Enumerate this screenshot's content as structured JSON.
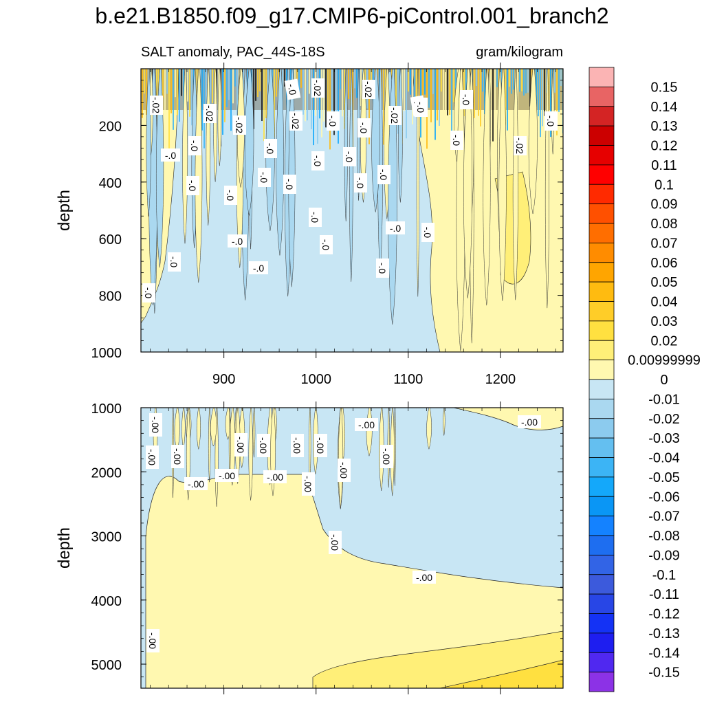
{
  "chart_data": {
    "type": "contour",
    "title": "b.e21.B1850.f09_g17.CMIP6-piControl.001_branch2",
    "subtitle_left": "SALT anomaly, PAC_44S-18S",
    "subtitle_right": "gram/kilogram",
    "xlabel": "",
    "xlim": [
      810,
      1268
    ],
    "x_ticks": [
      900,
      1000,
      1100,
      1200
    ],
    "x_tick_labels": [
      "900",
      "1000",
      "1100",
      "1200"
    ],
    "panels": [
      {
        "name": "upper",
        "ylabel": "depth",
        "ylim": [
          1000,
          0
        ],
        "y_ticks": [
          200,
          400,
          600,
          800,
          1000
        ],
        "y_tick_labels": [
          "200",
          "400",
          "600",
          "800",
          "1000"
        ],
        "contour_labels": [
          "-.02",
          "-.02",
          "-.02",
          "-.02",
          "-.02",
          "-.02",
          "-.02",
          "-.02",
          "-.02",
          "-.0",
          "-.0",
          "-.0",
          "-.0",
          "-.0",
          "-.0",
          "-.0",
          "-.0",
          "-.0",
          "-.0",
          "-.0",
          "-.0",
          "-.0",
          "-.0",
          "-.0",
          "-.0",
          "-.0",
          "-.0",
          "-.0",
          "-.0",
          "-.0",
          "-.0",
          "-.0",
          "-.0",
          "-.0",
          "-.0",
          "-.0"
        ]
      },
      {
        "name": "lower",
        "ylabel": "depth",
        "ylim": [
          5375,
          1000
        ],
        "y_ticks": [
          1000,
          2000,
          3000,
          4000,
          5000
        ],
        "y_tick_labels": [
          "1000",
          "2000",
          "3000",
          "4000",
          "5000"
        ],
        "contour_labels": [
          "-.00",
          "-.00",
          "-.00",
          "-.00",
          "-.00",
          "-.00",
          "-.00",
          "-.00",
          "-.00",
          "-.00",
          "-.00",
          "-.00",
          "-.00",
          "-.00",
          "-.00",
          "-.00",
          "-.00",
          "-.00"
        ]
      }
    ],
    "colorbar": {
      "labels": [
        "0.15",
        "0.14",
        "0.13",
        "0.12",
        "0.11",
        "0.1",
        "0.09",
        "0.08",
        "0.07",
        "0.06",
        "0.05",
        "0.04",
        "0.03",
        "0.02",
        "0.00999999",
        "0",
        "-0.01",
        "-0.02",
        "-0.03",
        "-0.04",
        "-0.05",
        "-0.06",
        "-0.07",
        "-0.08",
        "-0.09",
        "-0.1",
        "-0.11",
        "-0.12",
        "-0.13",
        "-0.14",
        "-0.15"
      ],
      "colors": [
        "#fbb4b4",
        "#e86464",
        "#d42424",
        "#cc0000",
        "#e60000",
        "#ff0000",
        "#ff2a00",
        "#ff5000",
        "#ff6e00",
        "#ff8c00",
        "#ffa500",
        "#ffbb10",
        "#ffcd28",
        "#ffe040",
        "#ffef78",
        "#fff8b0",
        "#c8e6f4",
        "#aad8f0",
        "#8ccbee",
        "#64bff0",
        "#3cb4f5",
        "#14a8fa",
        "#0a96f5",
        "#1482ff",
        "#1e6ef0",
        "#3264e6",
        "#3c5adc",
        "#2846e6",
        "#1432f5",
        "#1e1ef0",
        "#5028f0",
        "#8c32e6"
      ]
    }
  }
}
